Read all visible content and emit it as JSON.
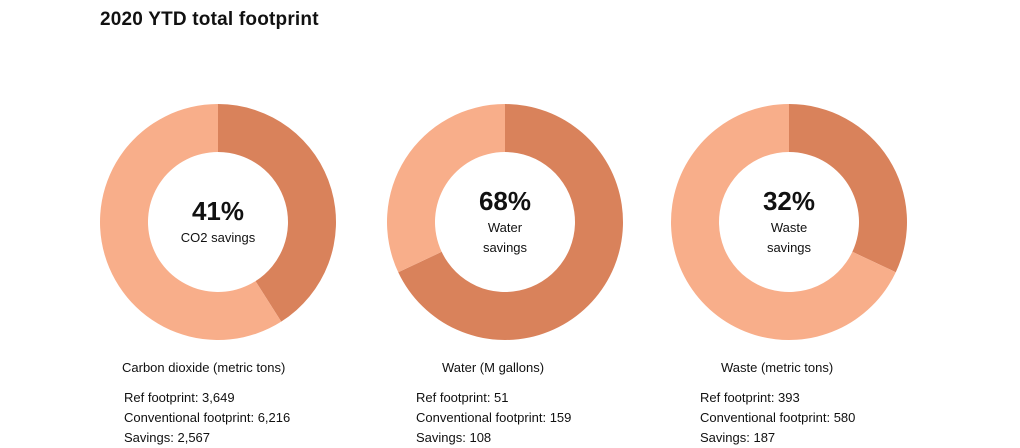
{
  "title": "2020 YTD total footprint",
  "colors": {
    "savings": "#d9825b",
    "remainder": "#f8ae8a"
  },
  "chart_data": [
    {
      "type": "pie",
      "center_value": "41%",
      "center_label": "CO2 savings",
      "metric_title": "Carbon dioxide (metric tons)",
      "slices": [
        {
          "value": 41
        },
        {
          "value": 59
        }
      ],
      "stats": {
        "ref": "Ref footprint: 3,649",
        "conventional": "Conventional footprint: 6,216",
        "savings": "Savings: 2,567"
      }
    },
    {
      "type": "pie",
      "center_value": "68%",
      "center_label": "Water savings",
      "metric_title": "Water (M gallons)",
      "slices": [
        {
          "value": 68
        },
        {
          "value": 32
        }
      ],
      "stats": {
        "ref": "Ref footprint: 51",
        "conventional": "Conventional footprint: 159",
        "savings": "Savings: 108"
      }
    },
    {
      "type": "pie",
      "center_value": "32%",
      "center_label": "Waste savings",
      "metric_title": "Waste (metric tons)",
      "slices": [
        {
          "value": 32
        },
        {
          "value": 68
        }
      ],
      "stats": {
        "ref": "Ref footprint: 393",
        "conventional": "Conventional footprint: 580",
        "savings": "Savings: 187"
      }
    }
  ]
}
